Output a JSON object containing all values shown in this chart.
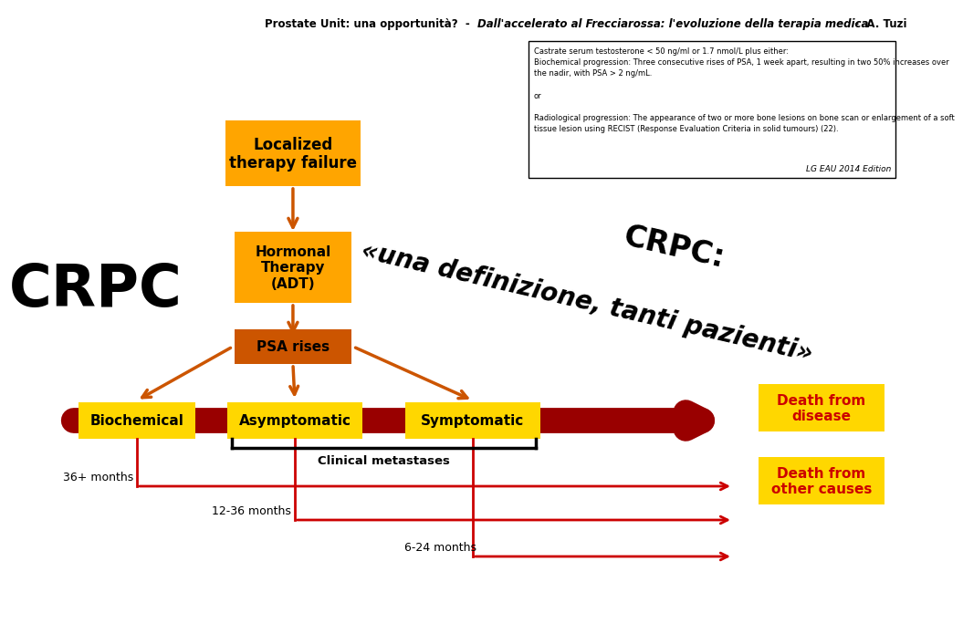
{
  "title_normal": "Prostate Unit: una opportunità? - ",
  "title_italic": "Dall'accelerato al Frecciarossa: l'evoluzione della terapia medica",
  "title_end": " - A. Tuzi",
  "bg_color": "#FFFFFF",
  "orange_color": "#FFA500",
  "dark_orange_color": "#CC5500",
  "dark_red_color": "#990000",
  "yellow_color": "#FFD700",
  "red_color": "#CC0000",
  "crpc_text": "CRPC",
  "crpc_label": "CRPC:",
  "crpc_quote": "«una definizione, tanti pazienti»",
  "box1_text": "Localized\ntherapy failure",
  "box2_text": "Hormonal\nTherapy\n(ADT)",
  "box3_text": "PSA rises",
  "box4_text": "Biochemical",
  "box5_text": "Asymptomatic",
  "box6_text": "Symptomatic",
  "box7_text": "Death from\ndisease",
  "box8_text": "Death from\nother causes",
  "timeline1": "36+ months",
  "timeline2": "12-36 months",
  "timeline3": "6-24 months",
  "clinical_meta": "Clinical metastases",
  "info_line1": "Castrate serum testosterone < 50 ng/ml or 1.7 nmol/L plus either:",
  "info_line2": "Biochemical progression: Three consecutive rises of PSA, 1 week apart, resulting in two 50% increases over",
  "info_line3": "the nadir, with PSA > 2 ng/mL.",
  "info_line4": "",
  "info_line5": "or",
  "info_line6": "",
  "info_line7": "Radiological progression: The appearance of two or more bone lesions on bone scan or enlargement of a soft",
  "info_line8": "tissue lesion using RECIST (Response Evaluation Criteria in solid tumours) (22).",
  "eau_text": "LG EAU 2014 Edition"
}
